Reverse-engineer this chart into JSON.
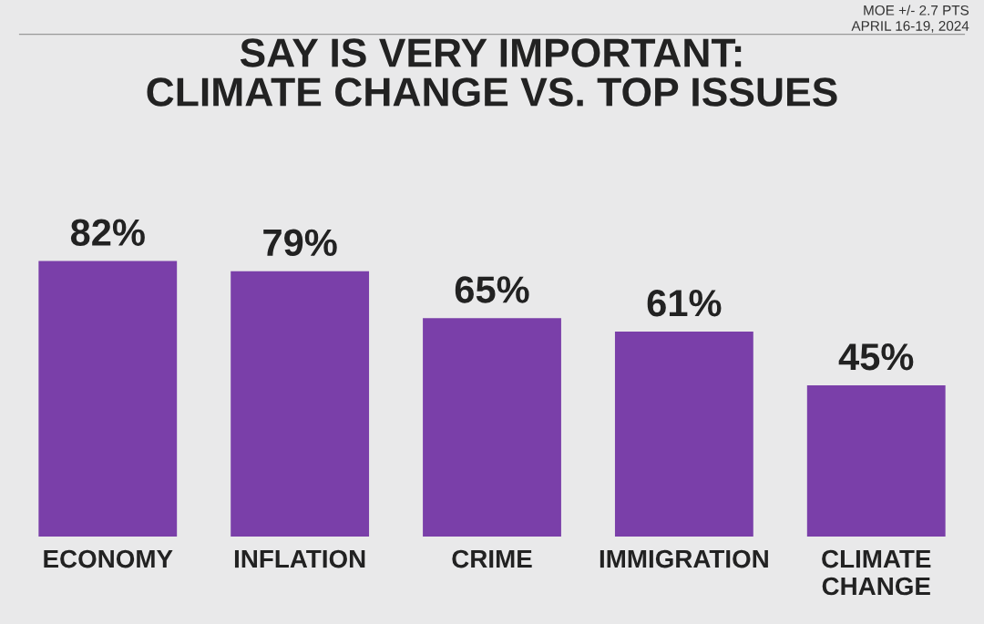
{
  "chart_data": {
    "type": "bar",
    "title": "SAY IS VERY IMPORTANT:\nCLIMATE CHANGE VS. TOP ISSUES",
    "categories": [
      "ECONOMY",
      "INFLATION",
      "CRIME",
      "IMMIGRATION",
      "CLIMATE\nCHANGE"
    ],
    "values": [
      82,
      79,
      65,
      61,
      45
    ],
    "value_labels": [
      "82%",
      "79%",
      "65%",
      "61%",
      "45%"
    ],
    "color": "#7a3fa9",
    "annotations": [
      "MOE +/- 2.7 PTS",
      "APRIL 16-19, 2024"
    ],
    "grid": false,
    "legend": false
  }
}
